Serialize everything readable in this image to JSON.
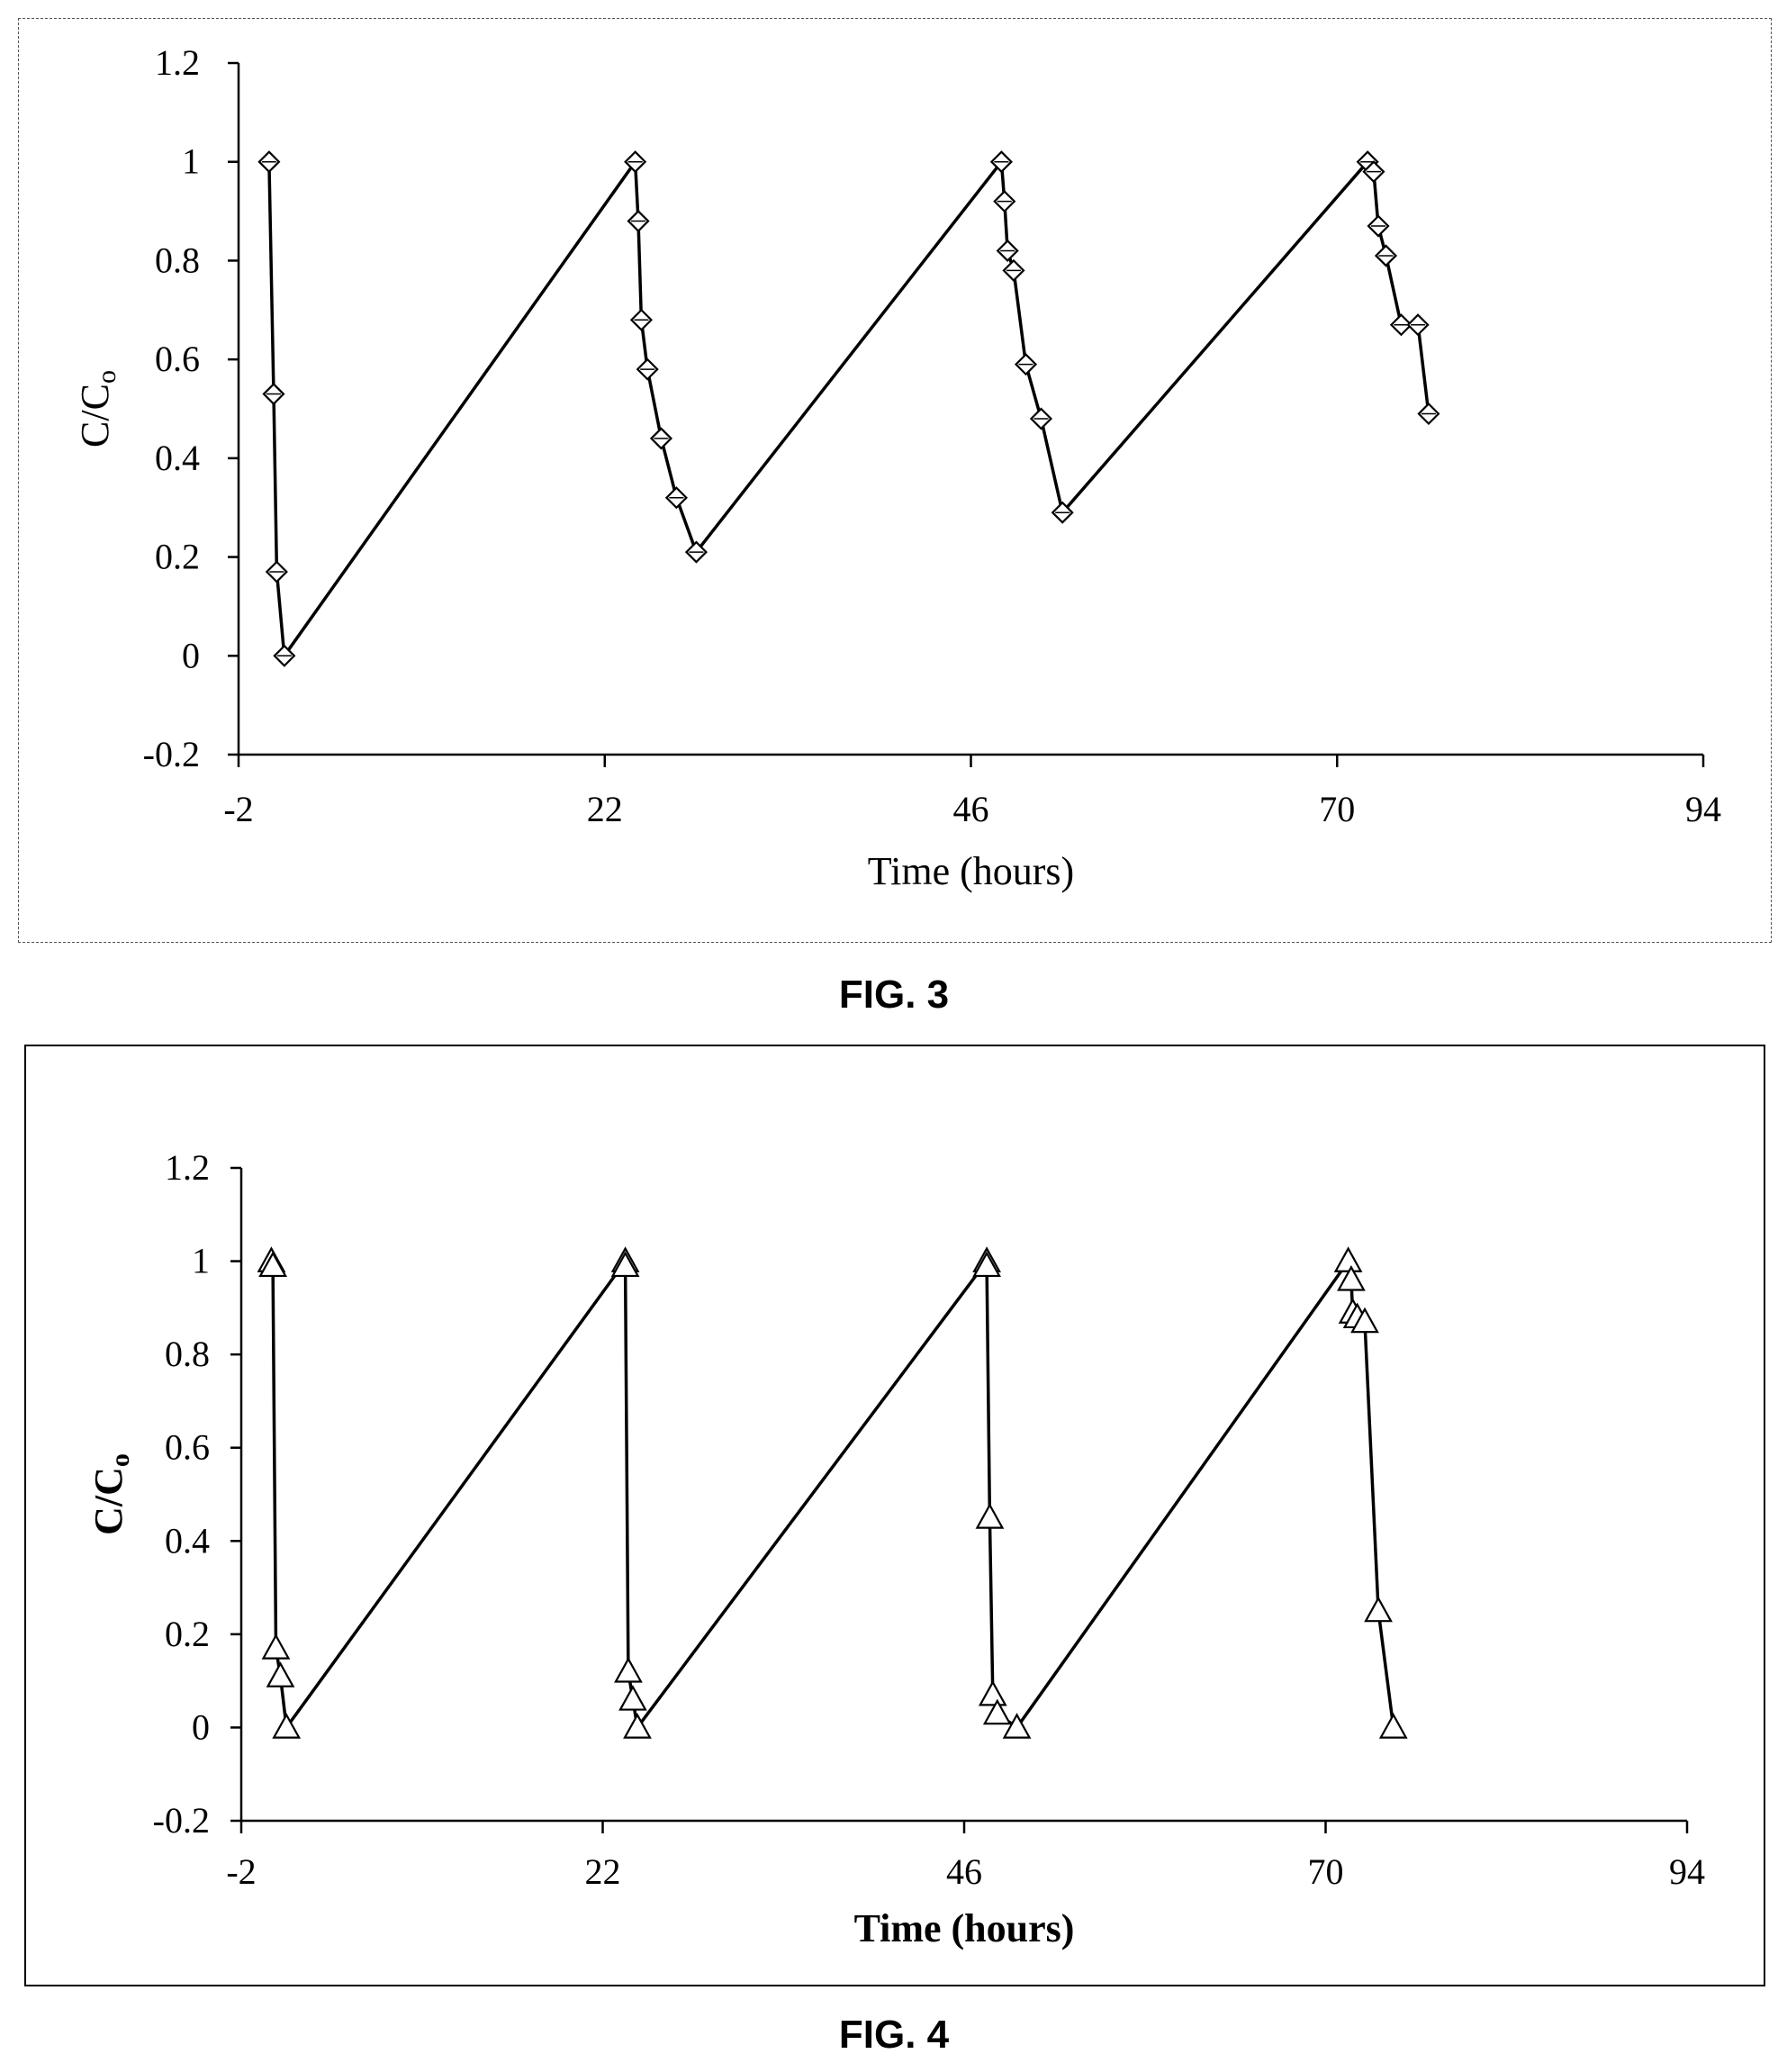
{
  "figures": [
    {
      "caption": "FIG. 3",
      "axis_titles": {
        "x": "Time (hours)",
        "y_main": "C/C",
        "y_sub": "o"
      },
      "bold_titles": false
    },
    {
      "caption": "FIG. 4",
      "axis_titles": {
        "x": "Time (hours)",
        "y_main": "C/C",
        "y_sub": "o"
      },
      "bold_titles": true
    }
  ],
  "chart_data": [
    {
      "type": "line",
      "title": "",
      "xlabel": "Time (hours)",
      "ylabel": "C/Co",
      "xlim": [
        -2,
        94
      ],
      "ylim": [
        -0.2,
        1.2
      ],
      "x_ticks": [
        "-2",
        "22",
        "46",
        "70",
        "94"
      ],
      "y_ticks": [
        "-0.2",
        "0",
        "0.2",
        "0.4",
        "0.6",
        "0.8",
        "1",
        "1.2"
      ],
      "marker": "diamond",
      "grid": false,
      "series": [
        {
          "x": [
            0,
            0.3,
            0.5,
            1,
            24,
            24.2,
            24.4,
            24.8,
            25.7,
            26.7,
            28,
            48,
            48.2,
            48.4,
            48.8,
            49.6,
            50.6,
            52,
            72,
            72.4,
            72.7,
            73.2,
            74.2,
            75.3,
            76
          ],
          "y": [
            1,
            0.53,
            0.17,
            0,
            1,
            0.88,
            0.68,
            0.58,
            0.44,
            0.32,
            0.21,
            1,
            0.92,
            0.82,
            0.78,
            0.59,
            0.48,
            0.29,
            1,
            0.98,
            0.87,
            0.81,
            0.67,
            0.67,
            0.49
          ]
        }
      ]
    },
    {
      "type": "line",
      "title": "",
      "xlabel": "Time (hours)",
      "ylabel": "C/Co",
      "xlim": [
        -2,
        94
      ],
      "ylim": [
        -0.2,
        1.2
      ],
      "x_ticks": [
        "-2",
        "22",
        "46",
        "70",
        "94"
      ],
      "y_ticks": [
        "-0.2",
        "0",
        "0.2",
        "0.4",
        "0.6",
        "0.8",
        "1",
        "1.2"
      ],
      "marker": "triangle",
      "grid": false,
      "series": [
        {
          "x": [
            0,
            0.1,
            0.3,
            0.6,
            1,
            23.5,
            23.5,
            23.7,
            24,
            24.3,
            47.5,
            47.5,
            47.7,
            47.9,
            48.2,
            49.5,
            71.5,
            71.7,
            71.8,
            72.1,
            72.6,
            73.5,
            74.5
          ],
          "y": [
            1,
            0.99,
            0.17,
            0.11,
            0,
            1,
            0.99,
            0.12,
            0.06,
            0,
            1,
            0.99,
            0.45,
            0.07,
            0.03,
            0,
            1,
            0.96,
            0.89,
            0.88,
            0.87,
            0.25,
            0
          ]
        }
      ]
    }
  ]
}
